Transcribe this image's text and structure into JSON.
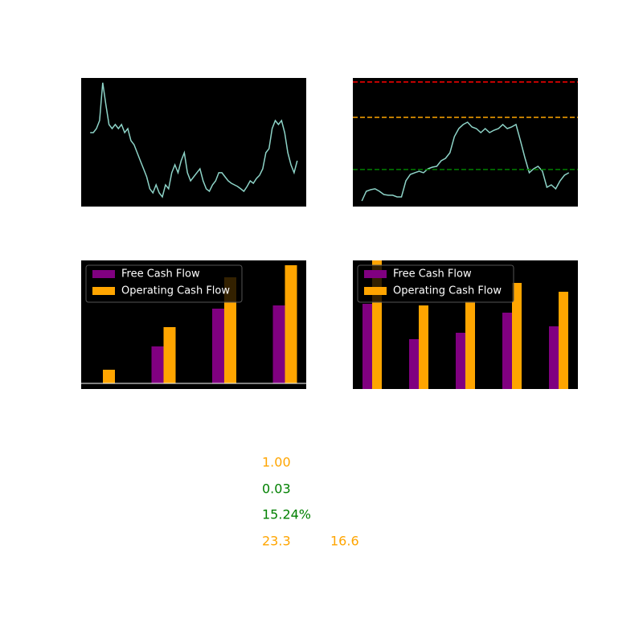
{
  "chart_data": [
    {
      "type": "line",
      "ylim": [
        0,
        100
      ],
      "series": [
        {
          "color": "#8dd3c7",
          "values": [
            57.5,
            57.5,
            60.6,
            66.9,
            96.3,
            79.4,
            63.8,
            60.6,
            63.8,
            60.6,
            63.8,
            57.5,
            60.6,
            51.3,
            48.1,
            41.9,
            35.6,
            29.4,
            23.1,
            13.8,
            10.6,
            16.9,
            10.6,
            7.5,
            16.9,
            13.8,
            26.3,
            32.5,
            26.3,
            35.6,
            41.9,
            26.3,
            20,
            23.1,
            26.3,
            29.4,
            20,
            13.8,
            11.9,
            16.9,
            20,
            26.3,
            26.3,
            23.1,
            20,
            18.1,
            16.9,
            15.6,
            13.8,
            11.9,
            15.6,
            20,
            18.1,
            21.9,
            24.4,
            29.4,
            41.9,
            45,
            60.6,
            66.9,
            63.8,
            66.9,
            57.5,
            41.9,
            32.5,
            26.3,
            35.6
          ]
        }
      ]
    },
    {
      "type": "line",
      "ylim": [
        0,
        100
      ],
      "hlines": [
        {
          "value": 96.9,
          "color": "red",
          "linestyle": "dashed"
        },
        {
          "value": 69.4,
          "color": "#ffa500",
          "linestyle": "dashed"
        },
        {
          "value": 28.8,
          "color": "green",
          "linestyle": "dashed"
        }
      ],
      "series": [
        {
          "color": "#8dd3c7",
          "values": [
            4.4,
            11.9,
            13.1,
            13.8,
            11.9,
            9.4,
            8.8,
            8.8,
            7.5,
            7.5,
            20,
            25,
            26.3,
            27.5,
            26.3,
            29.4,
            30.6,
            31.3,
            35.6,
            37.5,
            41.9,
            54.4,
            60.6,
            63.8,
            65.6,
            61.9,
            60.6,
            57.5,
            60.6,
            57.5,
            59.4,
            60.6,
            63.8,
            60.6,
            61.9,
            63.8,
            51.3,
            38.1,
            26.3,
            29.4,
            31.3,
            27.5,
            15,
            16.9,
            13.8,
            20,
            24.4,
            26.3
          ]
        }
      ]
    },
    {
      "type": "bar",
      "ylim": [
        -7,
        153
      ],
      "legend": "upper left",
      "hlines": [
        {
          "value": 0,
          "color": "white",
          "linestyle": "solid"
        }
      ],
      "series": [
        {
          "name": "Free Cash Flow",
          "color": "purple",
          "values": [
            0,
            46,
            93,
            97
          ]
        },
        {
          "name": "Operating Cash Flow",
          "color": "orange",
          "values": [
            17,
            70,
            132,
            147
          ]
        }
      ]
    },
    {
      "type": "bar",
      "ylim": [
        0,
        160
      ],
      "legend": "upper left",
      "series": [
        {
          "name": "Free Cash Flow",
          "color": "purple",
          "values": [
            106,
            62,
            70,
            95,
            78
          ]
        },
        {
          "name": "Operating Cash Flow",
          "color": "orange",
          "values": [
            165,
            104,
            109,
            132,
            121
          ]
        }
      ]
    }
  ],
  "annotations": [
    {
      "text": "1.00",
      "color": "orange"
    },
    {
      "text": "0.03",
      "color": "green"
    },
    {
      "text": "15.24%",
      "color": "green"
    },
    {
      "text": "23.3",
      "color": "orange"
    },
    {
      "text": "16.6",
      "color": "orange"
    }
  ]
}
